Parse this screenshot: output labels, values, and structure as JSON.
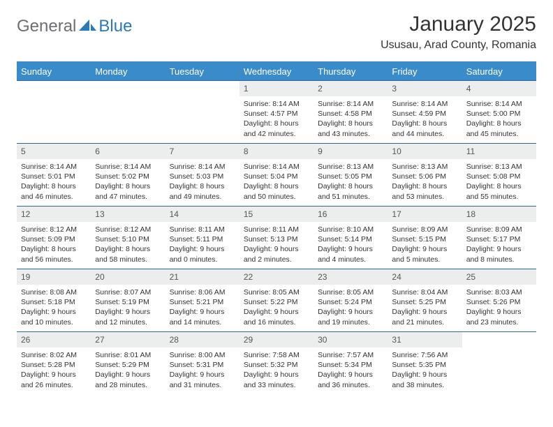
{
  "logo": {
    "text_general": "General",
    "text_blue": "Blue"
  },
  "header": {
    "month_title": "January 2025",
    "location": "Ususau, Arad County, Romania"
  },
  "colors": {
    "header_bg": "#3a8bc9",
    "header_text": "#ffffff",
    "row_border": "#2a6aa0",
    "daynum_bg": "#eceded",
    "body_text": "#333333",
    "logo_gray": "#6d6e71",
    "logo_blue": "#2a7ab8"
  },
  "day_headers": [
    "Sunday",
    "Monday",
    "Tuesday",
    "Wednesday",
    "Thursday",
    "Friday",
    "Saturday"
  ],
  "weeks": [
    [
      {
        "empty": true
      },
      {
        "empty": true
      },
      {
        "empty": true
      },
      {
        "num": "1",
        "sunrise": "8:14 AM",
        "sunset": "4:57 PM",
        "day_h": "8",
        "day_m": "42"
      },
      {
        "num": "2",
        "sunrise": "8:14 AM",
        "sunset": "4:58 PM",
        "day_h": "8",
        "day_m": "43"
      },
      {
        "num": "3",
        "sunrise": "8:14 AM",
        "sunset": "4:59 PM",
        "day_h": "8",
        "day_m": "44"
      },
      {
        "num": "4",
        "sunrise": "8:14 AM",
        "sunset": "5:00 PM",
        "day_h": "8",
        "day_m": "45"
      }
    ],
    [
      {
        "num": "5",
        "sunrise": "8:14 AM",
        "sunset": "5:01 PM",
        "day_h": "8",
        "day_m": "46"
      },
      {
        "num": "6",
        "sunrise": "8:14 AM",
        "sunset": "5:02 PM",
        "day_h": "8",
        "day_m": "47"
      },
      {
        "num": "7",
        "sunrise": "8:14 AM",
        "sunset": "5:03 PM",
        "day_h": "8",
        "day_m": "49"
      },
      {
        "num": "8",
        "sunrise": "8:14 AM",
        "sunset": "5:04 PM",
        "day_h": "8",
        "day_m": "50"
      },
      {
        "num": "9",
        "sunrise": "8:13 AM",
        "sunset": "5:05 PM",
        "day_h": "8",
        "day_m": "51"
      },
      {
        "num": "10",
        "sunrise": "8:13 AM",
        "sunset": "5:06 PM",
        "day_h": "8",
        "day_m": "53"
      },
      {
        "num": "11",
        "sunrise": "8:13 AM",
        "sunset": "5:08 PM",
        "day_h": "8",
        "day_m": "55"
      }
    ],
    [
      {
        "num": "12",
        "sunrise": "8:12 AM",
        "sunset": "5:09 PM",
        "day_h": "8",
        "day_m": "56"
      },
      {
        "num": "13",
        "sunrise": "8:12 AM",
        "sunset": "5:10 PM",
        "day_h": "8",
        "day_m": "58"
      },
      {
        "num": "14",
        "sunrise": "8:11 AM",
        "sunset": "5:11 PM",
        "day_h": "9",
        "day_m": "0"
      },
      {
        "num": "15",
        "sunrise": "8:11 AM",
        "sunset": "5:13 PM",
        "day_h": "9",
        "day_m": "2"
      },
      {
        "num": "16",
        "sunrise": "8:10 AM",
        "sunset": "5:14 PM",
        "day_h": "9",
        "day_m": "4"
      },
      {
        "num": "17",
        "sunrise": "8:09 AM",
        "sunset": "5:15 PM",
        "day_h": "9",
        "day_m": "5"
      },
      {
        "num": "18",
        "sunrise": "8:09 AM",
        "sunset": "5:17 PM",
        "day_h": "9",
        "day_m": "8"
      }
    ],
    [
      {
        "num": "19",
        "sunrise": "8:08 AM",
        "sunset": "5:18 PM",
        "day_h": "9",
        "day_m": "10"
      },
      {
        "num": "20",
        "sunrise": "8:07 AM",
        "sunset": "5:19 PM",
        "day_h": "9",
        "day_m": "12"
      },
      {
        "num": "21",
        "sunrise": "8:06 AM",
        "sunset": "5:21 PM",
        "day_h": "9",
        "day_m": "14"
      },
      {
        "num": "22",
        "sunrise": "8:05 AM",
        "sunset": "5:22 PM",
        "day_h": "9",
        "day_m": "16"
      },
      {
        "num": "23",
        "sunrise": "8:05 AM",
        "sunset": "5:24 PM",
        "day_h": "9",
        "day_m": "19"
      },
      {
        "num": "24",
        "sunrise": "8:04 AM",
        "sunset": "5:25 PM",
        "day_h": "9",
        "day_m": "21"
      },
      {
        "num": "25",
        "sunrise": "8:03 AM",
        "sunset": "5:26 PM",
        "day_h": "9",
        "day_m": "23"
      }
    ],
    [
      {
        "num": "26",
        "sunrise": "8:02 AM",
        "sunset": "5:28 PM",
        "day_h": "9",
        "day_m": "26"
      },
      {
        "num": "27",
        "sunrise": "8:01 AM",
        "sunset": "5:29 PM",
        "day_h": "9",
        "day_m": "28"
      },
      {
        "num": "28",
        "sunrise": "8:00 AM",
        "sunset": "5:31 PM",
        "day_h": "9",
        "day_m": "31"
      },
      {
        "num": "29",
        "sunrise": "7:58 AM",
        "sunset": "5:32 PM",
        "day_h": "9",
        "day_m": "33"
      },
      {
        "num": "30",
        "sunrise": "7:57 AM",
        "sunset": "5:34 PM",
        "day_h": "9",
        "day_m": "36"
      },
      {
        "num": "31",
        "sunrise": "7:56 AM",
        "sunset": "5:35 PM",
        "day_h": "9",
        "day_m": "38"
      },
      {
        "empty": true
      }
    ]
  ],
  "labels": {
    "sunrise": "Sunrise:",
    "sunset": "Sunset:",
    "daylight": "Daylight:",
    "hours": "hours",
    "and": "and",
    "minutes": "minutes."
  }
}
